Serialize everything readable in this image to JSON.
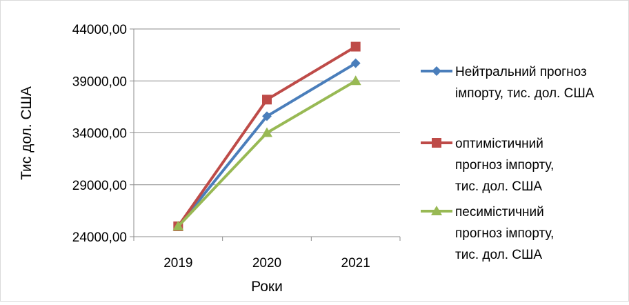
{
  "chart_data": {
    "type": "line",
    "title": "",
    "xlabel": "Роки",
    "ylabel": "Тис дол. США",
    "categories": [
      "2019",
      "2020",
      "2021"
    ],
    "ylim": [
      24000,
      44000
    ],
    "yticks": [
      "24000,00",
      "29000,00",
      "34000,00",
      "39000,00",
      "44000,00"
    ],
    "grid": true,
    "legend_position": "right",
    "series": [
      {
        "name": "Нейтральний прогноз імпорту, тис. дол. США",
        "legend_lines": [
          "Нейтральний прогноз",
          "імпорту, тис. дол. США"
        ],
        "values": [
          25000,
          35600,
          40700
        ],
        "color": "#4a7ebb",
        "marker": "diamond"
      },
      {
        "name": "оптимістичний прогноз імпорту, тис. дол. США",
        "legend_lines": [
          "оптимістичний",
          "прогноз імпорту,",
          "тис. дол. США"
        ],
        "values": [
          25000,
          37200,
          42300
        ],
        "color": "#be4b48",
        "marker": "square"
      },
      {
        "name": "песимістичний прогноз імпорту, тис. дол. США",
        "legend_lines": [
          "песимістичний",
          "прогноз імпорту,",
          "тис. дол. США"
        ],
        "values": [
          25000,
          34000,
          39000
        ],
        "color": "#98b954",
        "marker": "triangle"
      }
    ]
  }
}
